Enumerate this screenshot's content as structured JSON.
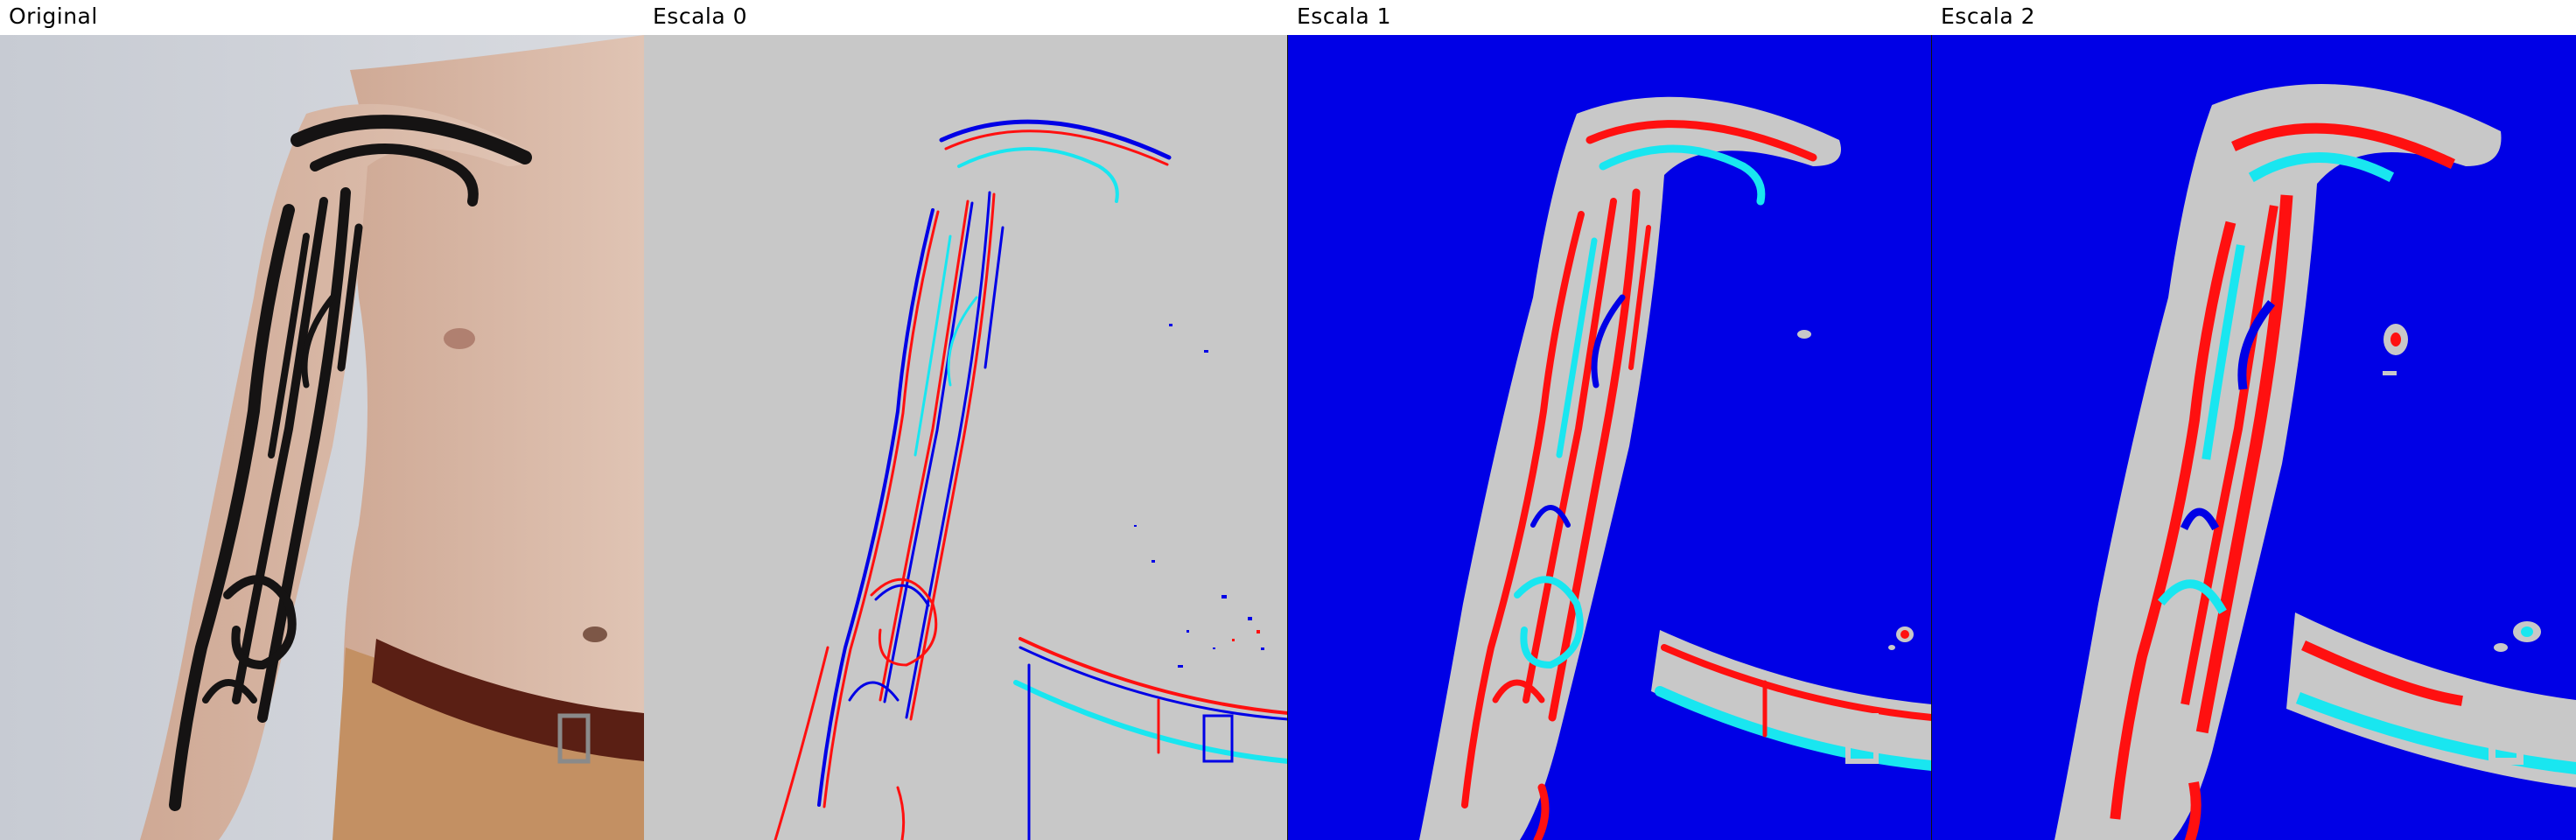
{
  "panels": [
    {
      "title": "Original"
    },
    {
      "title": "Escala 0"
    },
    {
      "title": "Escala 1"
    },
    {
      "title": "Escala 2"
    }
  ],
  "colors": {
    "label_bg": "#ffffff",
    "label_text": "#000000",
    "gray": "#c8c8c8",
    "blue": "#0000e6",
    "red": "#ff1010",
    "cyan": "#19e6f0",
    "photo_bg": "#c9cdd4",
    "skin": "#d8b8a6",
    "ink": "#151313",
    "belt": "#5a1f14",
    "pants": "#c39063"
  }
}
